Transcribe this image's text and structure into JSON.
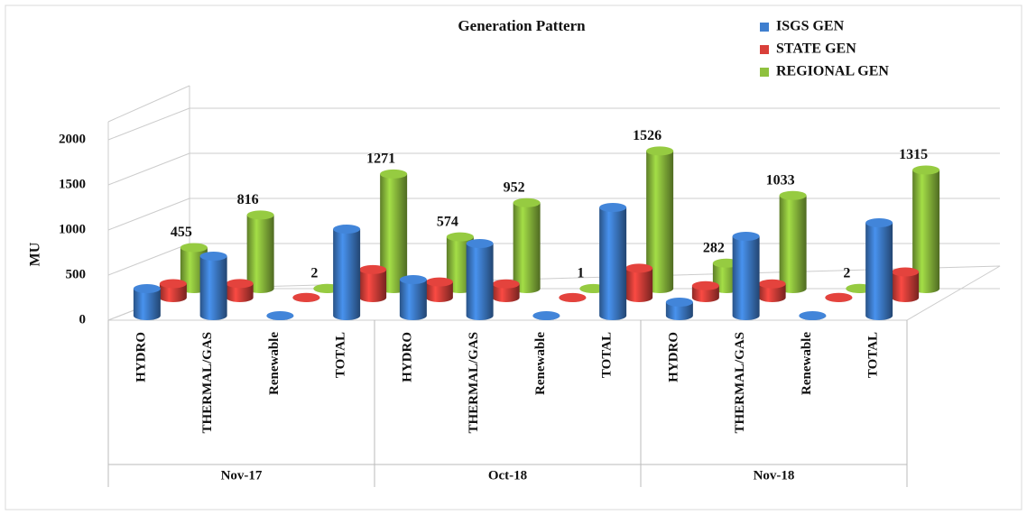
{
  "chart_data": {
    "type": "bar3d",
    "title": "Generation Pattern",
    "y_label": "MU",
    "categories": [
      "HYDRO",
      "THERMAL/GAS",
      "Renewable",
      "TOTAL",
      "HYDRO",
      "THERMAL/GAS",
      "Renewable",
      "TOTAL",
      "HYDRO",
      "THERMAL/GAS",
      "Renewable",
      "TOTAL"
    ],
    "groups": [
      "Nov-17",
      "Oct-18",
      "Nov-18"
    ],
    "series": [
      {
        "name": "ISGS GEN",
        "color": "#3f7fcf",
        "values": [
          300,
          660,
          0,
          960,
          400,
          800,
          0,
          1200,
          150,
          880,
          0,
          1030
        ]
      },
      {
        "name": "STATE GEN",
        "color": "#d9403a",
        "values": [
          155,
          156,
          2,
          311,
          174,
          152,
          1,
          326,
          132,
          153,
          2,
          285
        ]
      },
      {
        "name": "REGIONAL GEN",
        "color": "#8fc13e",
        "values": [
          455,
          816,
          2,
          1271,
          574,
          952,
          1,
          1526,
          282,
          1033,
          2,
          1315
        ],
        "labels": true
      }
    ],
    "ylim": [
      0,
      2250
    ],
    "yticks": [
      0,
      500,
      1000,
      1500,
      2000
    ],
    "grid": true
  }
}
